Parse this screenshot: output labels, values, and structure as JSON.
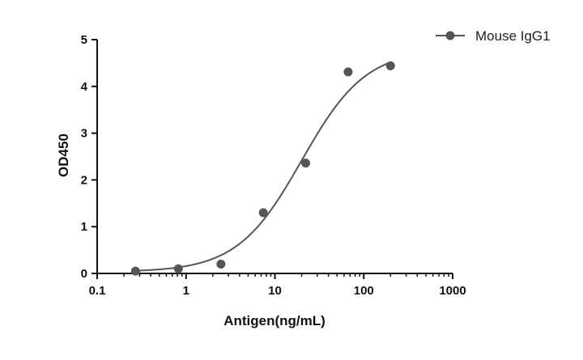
{
  "chart_data": {
    "type": "scatter",
    "title": "",
    "xlabel": "Antigen(ng/mL)",
    "ylabel": "OD450",
    "xscale": "log",
    "xlim": [
      0.1,
      1000
    ],
    "ylim": [
      0,
      5
    ],
    "x_ticks": [
      0.1,
      1,
      10,
      100,
      1000
    ],
    "x_tick_labels": [
      "0.1",
      "1",
      "10",
      "100",
      "1000"
    ],
    "y_ticks": [
      0,
      1,
      2,
      3,
      4,
      5
    ],
    "y_tick_labels": [
      "0",
      "1",
      "2",
      "3",
      "4",
      "5"
    ],
    "grid": false,
    "legend_position": "top-right",
    "series": [
      {
        "name": "Mouse IgG1",
        "color": "#555555",
        "points": [
          {
            "x": 0.27,
            "y": 0.05
          },
          {
            "x": 0.82,
            "y": 0.1
          },
          {
            "x": 2.47,
            "y": 0.2
          },
          {
            "x": 7.4,
            "y": 1.3
          },
          {
            "x": 22.2,
            "y": 2.36
          },
          {
            "x": 66.7,
            "y": 4.31
          },
          {
            "x": 200,
            "y": 4.44
          }
        ],
        "fit": {
          "model": "4PL",
          "bottom": 0.03,
          "top": 4.8,
          "ec50": 20,
          "hill": 1.2,
          "x_range": [
            0.25,
            200
          ]
        }
      }
    ]
  }
}
